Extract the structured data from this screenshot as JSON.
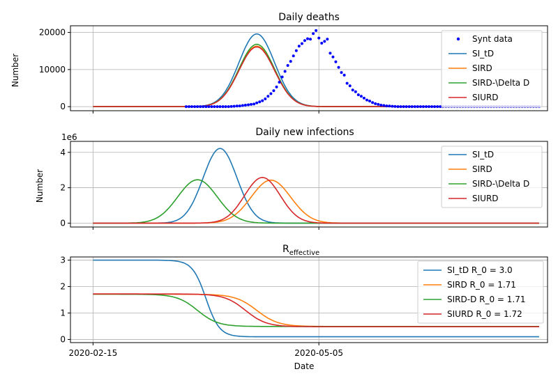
{
  "figure": {
    "xlabel": "Date",
    "x_ticks": [
      {
        "date": "2020-02-15",
        "label": "2020-02-15"
      },
      {
        "date": "2020-05-05",
        "label": "2020-05-05"
      }
    ]
  },
  "chart_data": [
    {
      "type": "line",
      "title": "Daily deaths",
      "xlabel": "",
      "ylabel": "Number",
      "y_ticks": [
        0,
        10000,
        20000
      ],
      "y_tick_labels": [
        "0",
        "10000",
        "20000"
      ],
      "ylim": [
        -1100,
        21800
      ],
      "xlim": [
        "2020-02-07",
        "2020-07-25"
      ],
      "grid": true,
      "legend": "upper-right",
      "scatter": {
        "name": "Synt data",
        "color": "#0000ff",
        "x_start": "2020-03-19",
        "x_end": "2020-07-22",
        "values": [
          0,
          0,
          0,
          0,
          0,
          0,
          0,
          0,
          0,
          0,
          0,
          0,
          0,
          0,
          0,
          0,
          50,
          100,
          150,
          200,
          300,
          400,
          500,
          600,
          700,
          1000,
          1300,
          1600,
          2100,
          2800,
          3500,
          4300,
          5300,
          6600,
          8000,
          9500,
          11100,
          12200,
          13700,
          15100,
          16300,
          17000,
          17800,
          18300,
          18200,
          19700,
          20500,
          18500,
          17100,
          17600,
          18200,
          14400,
          13400,
          12100,
          10600,
          9200,
          8500,
          6300,
          5600,
          4500,
          4000,
          3200,
          2800,
          2300,
          1800,
          1500,
          1100,
          800,
          600,
          400,
          300,
          200,
          150,
          100,
          50,
          0,
          0,
          0,
          0,
          0,
          0,
          0,
          0,
          0,
          0,
          0,
          0,
          0,
          0,
          0,
          0,
          0,
          0,
          0,
          0,
          0,
          0,
          0,
          0,
          0,
          0,
          0,
          0,
          0,
          0,
          0,
          0,
          0,
          0,
          0,
          0,
          0,
          0,
          0,
          0,
          0,
          0,
          0,
          0,
          0,
          0,
          0,
          0,
          0,
          0,
          0
        ]
      },
      "series": [
        {
          "name": "SI_tD",
          "color": "#1f77b4",
          "peak_date": "2020-04-13",
          "peak": 19600,
          "sigma_days": 6.3
        },
        {
          "name": "SIRD",
          "color": "#ff7f0e",
          "peak_date": "2020-04-13",
          "peak": 16300,
          "sigma_days": 6.3
        },
        {
          "name": "SIRD-\\Delta D",
          "color": "#2ca02c",
          "peak_date": "2020-04-13",
          "peak": 16800,
          "sigma_days": 6.3
        },
        {
          "name": "SIURD",
          "color": "#d62728",
          "peak_date": "2020-04-13",
          "peak": 16100,
          "sigma_days": 6.3
        }
      ]
    },
    {
      "type": "line",
      "title": "Daily new infections",
      "xlabel": "",
      "ylabel": "Number",
      "y_offset_label": "1e6",
      "y_ticks": [
        0,
        2,
        4
      ],
      "y_tick_labels": [
        "0",
        "2",
        "4"
      ],
      "ylim": [
        -0.22,
        4.62
      ],
      "xlim": [
        "2020-02-07",
        "2020-07-25"
      ],
      "grid": true,
      "legend": "upper-right",
      "series": [
        {
          "name": "SI_tD",
          "color": "#1f77b4",
          "peak_date": "2020-03-31",
          "peak": 4.22,
          "sigma_days": 6.0
        },
        {
          "name": "SIRD",
          "color": "#ff7f0e",
          "peak_date": "2020-04-18",
          "peak": 2.43,
          "sigma_days": 7.0
        },
        {
          "name": "SIRD-\\Delta D",
          "color": "#2ca02c",
          "peak_date": "2020-03-23",
          "peak": 2.45,
          "sigma_days": 7.0
        },
        {
          "name": "SIURD",
          "color": "#d62728",
          "peak_date": "2020-04-15",
          "peak": 2.58,
          "sigma_days": 6.3
        }
      ]
    },
    {
      "type": "line",
      "title": "R",
      "title_subscript": "effective",
      "xlabel": "Date",
      "ylabel": "",
      "y_ticks": [
        0,
        1,
        2,
        3
      ],
      "y_tick_labels": [
        "0",
        "1",
        "2",
        "3"
      ],
      "ylim": [
        -0.12,
        3.12
      ],
      "xlim": [
        "2020-02-07",
        "2020-07-25"
      ],
      "grid": true,
      "legend": "upper-right",
      "series": [
        {
          "name": "SI_tD R_0 = 3.0",
          "color": "#1f77b4",
          "start": 3.0,
          "end": 0.1,
          "mid_date": "2020-03-26",
          "width_days": 2.4
        },
        {
          "name": "SIRD R_0 = 1.71",
          "color": "#ff7f0e",
          "start": 1.71,
          "end": 0.49,
          "mid_date": "2020-04-13",
          "width_days": 3.8
        },
        {
          "name": "SIRD-D R_0 = 1.71",
          "color": "#2ca02c",
          "start": 1.71,
          "end": 0.49,
          "mid_date": "2020-03-23",
          "width_days": 3.6
        },
        {
          "name": "SIURD R_0 = 1.72",
          "color": "#d62728",
          "start": 1.72,
          "end": 0.48,
          "mid_date": "2020-04-09",
          "width_days": 3.7
        }
      ]
    }
  ]
}
